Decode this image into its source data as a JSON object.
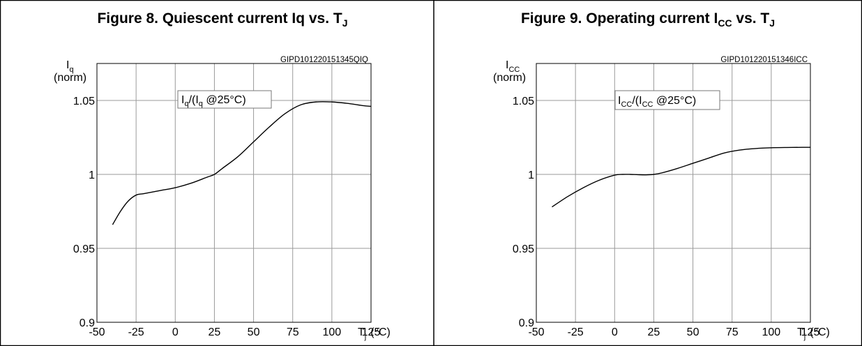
{
  "figures": [
    {
      "title": {
        "main": "Figure 8. Quiescent current Iq vs. T",
        "sub": "J"
      },
      "ylabel": {
        "sym": "I",
        "sub": "q",
        "unit": "(norm)"
      },
      "xlabel": {
        "sym": "T",
        "sub": "j",
        "unit": "(°C)"
      },
      "code": "GIPD101220151345QIQ",
      "box_label": [
        "I",
        "q",
        "/(I",
        "q",
        " @25°C)"
      ]
    },
    {
      "title": {
        "main": "Figure 9. Operating current I",
        "sub": "CC",
        "rest": " vs. T",
        "sub2": "J"
      },
      "ylabel": {
        "sym": "I",
        "sub": "CC",
        "unit": "(norm)"
      },
      "xlabel": {
        "sym": "T",
        "sub": "j",
        "unit": "(°C)"
      },
      "code": "GIPD101220151346ICC",
      "box_label": [
        "I",
        "CC",
        "/(I",
        "CC",
        " @25°C)"
      ]
    }
  ],
  "chart_data": [
    {
      "type": "line",
      "title": "Figure 8. Quiescent current Iq vs. TJ",
      "xlabel": "Tj (°C)",
      "ylabel": "Iq (norm)",
      "xlim": [
        -50,
        125
      ],
      "ylim": [
        0.9,
        1.075
      ],
      "x_ticks": [
        -50,
        -25,
        0,
        25,
        50,
        75,
        100,
        125
      ],
      "y_ticks": [
        0.9,
        0.95,
        1,
        1.05
      ],
      "x_tick_labels": [
        "-50",
        "-25",
        "0",
        "25",
        "50",
        "75",
        "100",
        "125"
      ],
      "y_tick_labels": [
        "0.9",
        "0.95",
        "1",
        "1.05"
      ],
      "grid": true,
      "series": [
        {
          "name": "Iq/(Iq @25°C)",
          "x": [
            -40,
            -35,
            -30,
            -25,
            -20,
            -10,
            0,
            10,
            20,
            25,
            30,
            40,
            50,
            60,
            70,
            80,
            90,
            100,
            110,
            120,
            125
          ],
          "y": [
            0.966,
            0.975,
            0.982,
            0.986,
            0.987,
            0.989,
            0.991,
            0.994,
            0.998,
            1.0,
            1.004,
            1.012,
            1.022,
            1.032,
            1.041,
            1.047,
            1.049,
            1.049,
            1.048,
            1.0465,
            1.046
          ]
        }
      ]
    },
    {
      "type": "line",
      "title": "Figure 9. Operating current ICC vs. TJ",
      "xlabel": "Tj (°C)",
      "ylabel": "ICC (norm)",
      "xlim": [
        -50,
        125
      ],
      "ylim": [
        0.9,
        1.075
      ],
      "x_ticks": [
        -50,
        -25,
        0,
        25,
        50,
        75,
        100,
        125
      ],
      "y_ticks": [
        0.9,
        0.95,
        1,
        1.05
      ],
      "x_tick_labels": [
        "-50",
        "-25",
        "0",
        "25",
        "50",
        "75",
        "100",
        "125"
      ],
      "y_tick_labels": [
        "0.9",
        "0.95",
        "1",
        "1.05"
      ],
      "grid": true,
      "series": [
        {
          "name": "ICC/(ICC @25°C)",
          "x": [
            -40,
            -30,
            -20,
            -10,
            0,
            5,
            10,
            15,
            20,
            25,
            30,
            40,
            50,
            60,
            70,
            80,
            90,
            100,
            110,
            120,
            125
          ],
          "y": [
            0.978,
            0.985,
            0.991,
            0.996,
            0.9995,
            1.0,
            1.0,
            0.9998,
            0.9997,
            1.0,
            1.001,
            1.004,
            1.0075,
            1.011,
            1.0145,
            1.0165,
            1.0175,
            1.018,
            1.0182,
            1.0183,
            1.0183
          ]
        }
      ]
    }
  ]
}
